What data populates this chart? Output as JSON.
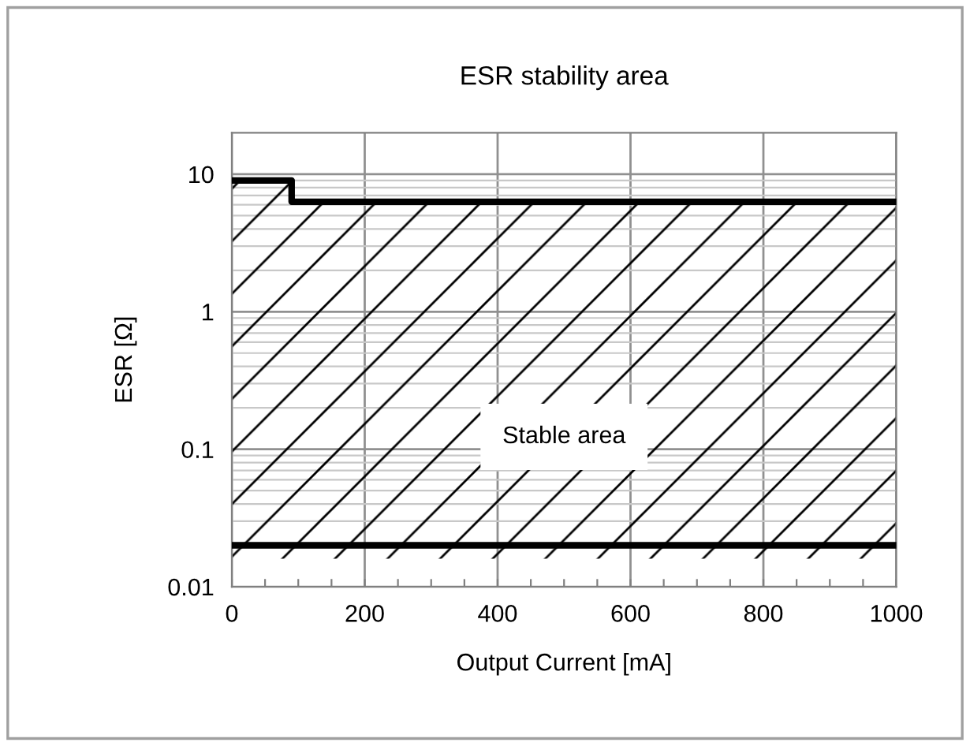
{
  "chart_data": {
    "type": "line",
    "title": "ESR stability area",
    "xlabel": "Output Current [mA]",
    "ylabel": "ESR [Ω]",
    "series": [
      {
        "color": "#000000",
        "x": [
          0,
          90,
          90,
          1000
        ],
        "values": [
          9,
          9,
          6.3,
          6.3
        ]
      },
      {
        "color": "#000000",
        "x": [
          0,
          1000
        ],
        "values": [
          0.02,
          0.02
        ]
      }
    ],
    "annotations": [
      "Stable area"
    ],
    "xlim": [
      0,
      1000
    ],
    "xticks": [
      0,
      200,
      400,
      600,
      800,
      1000
    ],
    "ylim": [
      0.01,
      20
    ],
    "yticks": [
      0.01,
      0.1,
      1,
      10
    ],
    "log": "y",
    "grid": true,
    "marker": "none",
    "line_style": "solid"
  }
}
